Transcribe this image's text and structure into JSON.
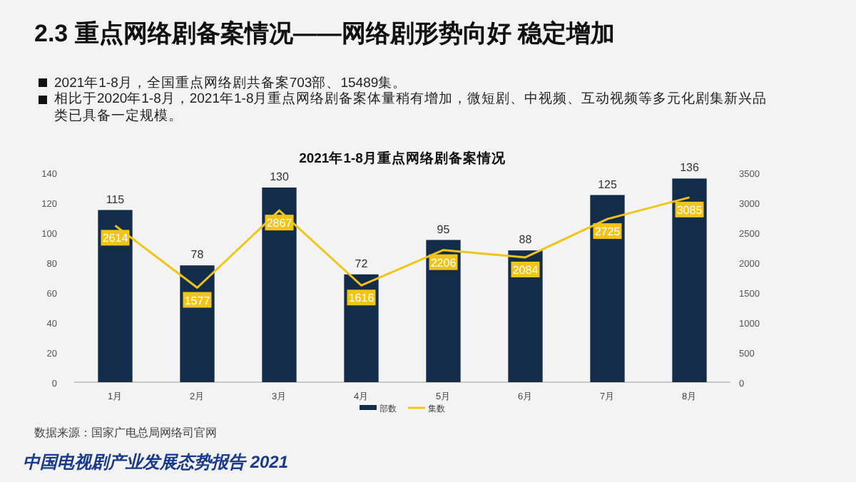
{
  "chart_data": {
    "type": "bar",
    "title": "2021年1-8月重点网络剧备案情况",
    "categories": [
      "1月",
      "2月",
      "3月",
      "4月",
      "5月",
      "6月",
      "7月",
      "8月"
    ],
    "series": [
      {
        "name": "部数",
        "color": "#132c4a",
        "values": [
          115,
          78,
          130,
          72,
          95,
          88,
          125,
          136
        ]
      },
      {
        "name": "集数",
        "type": "line",
        "axis": "y2",
        "color": "#f0c419",
        "values": [
          2614,
          1577,
          2867,
          1616,
          2206,
          2084,
          2725,
          3085
        ]
      }
    ],
    "ylim": [
      0,
      140
    ],
    "yticks": [
      0,
      20,
      40,
      60,
      80,
      100,
      120,
      140
    ],
    "y2lim": [
      0,
      3500
    ],
    "y2ticks": [
      0,
      500,
      1000,
      1500,
      2000,
      2500,
      3000,
      3500
    ],
    "data_labels": true,
    "grid": false,
    "legend": "bottom",
    "marker": "none",
    "annotations": [
      "2.3 重点网络剧备案情况——网络剧形势向好  稳定增加",
      "2021年1-8月，全国重点网络剧共备案703部、15489集。",
      "相比于2020年1-8月，2021年1-8月重点网络剧备案体量稍有增加，微短剧、中视频、互动视频等多元化剧集新兴品类已具备一定规模。",
      "数据来源：国家广电总局网络司官网",
      "中国电视剧产业发展态势报告 2021"
    ]
  }
}
